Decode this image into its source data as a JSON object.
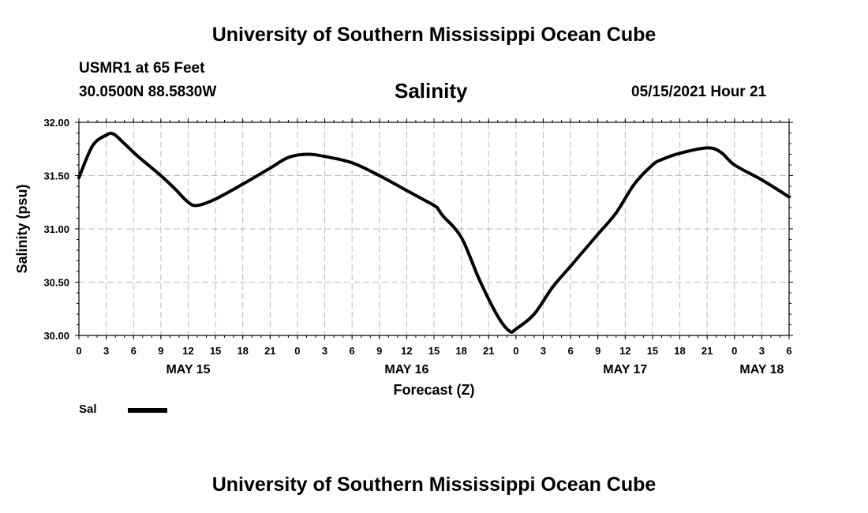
{
  "header": {
    "org_title": "University of Southern Mississippi Ocean Cube",
    "station": "USMR1 at 65 Feet",
    "coordinates": "30.0500N  88.5830W",
    "datetime": "05/15/2021 Hour 21"
  },
  "footer": {
    "org_title": "University of Southern Mississippi Ocean Cube"
  },
  "legend": {
    "label": "Sal",
    "color": "#000000"
  },
  "chart_data": {
    "type": "line",
    "title": "Salinity",
    "xlabel": "Forecast (Z)",
    "ylabel": "Salinity (psu)",
    "ylim": [
      30.0,
      32.0
    ],
    "xlim_hours": [
      0,
      78
    ],
    "grid": true,
    "legend_position": "bottom-left",
    "y_ticks": [
      "30.00",
      "30.50",
      "31.00",
      "31.50",
      "32.00"
    ],
    "x_ticks": [
      "0",
      "3",
      "6",
      "9",
      "12",
      "15",
      "18",
      "21",
      "0",
      "3",
      "6",
      "9",
      "12",
      "15",
      "18",
      "21",
      "0",
      "3",
      "6",
      "9",
      "12",
      "15",
      "18",
      "21",
      "0",
      "3",
      "6"
    ],
    "date_labels": [
      {
        "label": "MAY 15",
        "hour": 12
      },
      {
        "label": "MAY 16",
        "hour": 36
      },
      {
        "label": "MAY 17",
        "hour": 60
      },
      {
        "label": "MAY 18",
        "hour": 75
      }
    ],
    "series": [
      {
        "name": "Sal",
        "x": [
          0,
          1.5,
          3,
          3.8,
          5,
          6.5,
          9,
          10.5,
          12,
          13,
          15,
          18,
          21,
          23,
          25,
          27,
          30,
          33,
          36,
          39,
          39.5,
          40,
          42,
          44,
          46,
          47.3,
          48,
          50,
          52,
          54,
          56,
          57,
          59,
          61,
          63,
          64,
          66,
          69,
          70.5,
          72,
          75,
          78
        ],
        "values": [
          31.48,
          31.78,
          31.88,
          31.89,
          31.8,
          31.68,
          31.5,
          31.38,
          31.25,
          31.22,
          31.28,
          31.42,
          31.57,
          31.67,
          31.7,
          31.68,
          31.62,
          31.5,
          31.36,
          31.22,
          31.18,
          31.12,
          30.92,
          30.52,
          30.18,
          30.04,
          30.06,
          30.2,
          30.45,
          30.65,
          30.85,
          30.95,
          31.15,
          31.42,
          31.6,
          31.65,
          31.71,
          31.76,
          31.72,
          31.6,
          31.46,
          31.3
        ]
      }
    ]
  }
}
